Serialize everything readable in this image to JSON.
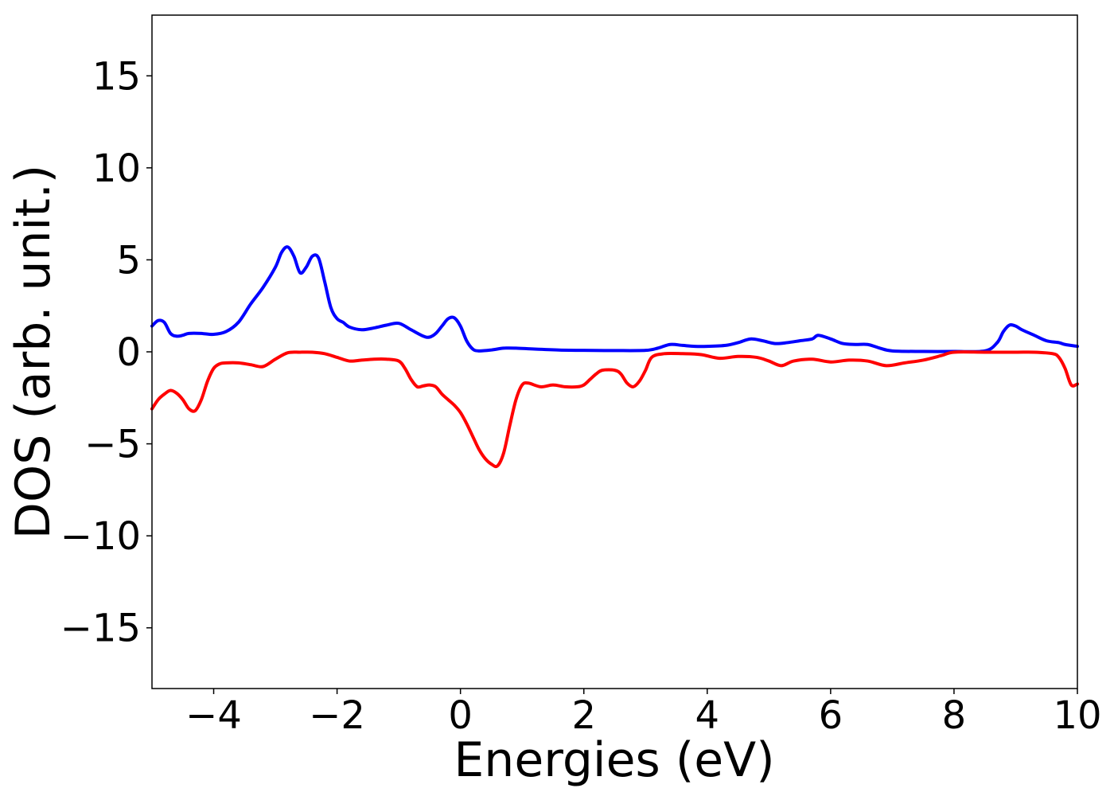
{
  "chart_data": {
    "type": "line",
    "title": "",
    "xlabel": "Energies (eV)",
    "ylabel": "DOS (arb. unit.)",
    "xlim": [
      -5,
      10
    ],
    "ylim": [
      -18.3,
      18.3
    ],
    "grid": false,
    "legend": "none",
    "x_ticks": [
      -4,
      -2,
      0,
      2,
      4,
      6,
      8,
      10
    ],
    "x_tick_labels": [
      "−4",
      "−2",
      "0",
      "2",
      "4",
      "6",
      "8",
      "10"
    ],
    "y_ticks": [
      -15,
      -10,
      -5,
      0,
      5,
      10,
      15
    ],
    "y_tick_labels": [
      "−15",
      "−10",
      "−5",
      "0",
      "5",
      "10",
      "15"
    ],
    "series": [
      {
        "color": "#0000ff",
        "x": [
          -5.0,
          -4.9,
          -4.8,
          -4.7,
          -4.6,
          -4.5,
          -4.4,
          -4.2,
          -4.0,
          -3.8,
          -3.6,
          -3.4,
          -3.2,
          -3.0,
          -2.9,
          -2.8,
          -2.7,
          -2.6,
          -2.5,
          -2.4,
          -2.3,
          -2.2,
          -2.1,
          -2.0,
          -1.9,
          -1.8,
          -1.6,
          -1.4,
          -1.2,
          -1.0,
          -0.8,
          -0.6,
          -0.5,
          -0.4,
          -0.3,
          -0.2,
          -0.1,
          0.0,
          0.1,
          0.2,
          0.3,
          0.5,
          0.7,
          0.9,
          1.2,
          1.6,
          2.0,
          2.5,
          3.0,
          3.2,
          3.4,
          3.6,
          3.8,
          4.0,
          4.3,
          4.5,
          4.7,
          4.9,
          5.1,
          5.3,
          5.5,
          5.7,
          5.8,
          6.0,
          6.2,
          6.4,
          6.6,
          6.8,
          7.0,
          7.5,
          8.0,
          8.5,
          8.7,
          8.8,
          8.9,
          9.0,
          9.1,
          9.3,
          9.5,
          9.7,
          9.8,
          10.0
        ],
        "y": [
          1.4,
          1.7,
          1.6,
          1.0,
          0.85,
          0.9,
          1.0,
          1.0,
          0.95,
          1.1,
          1.6,
          2.6,
          3.5,
          4.6,
          5.4,
          5.7,
          5.2,
          4.3,
          4.6,
          5.2,
          5.1,
          3.8,
          2.4,
          1.8,
          1.6,
          1.35,
          1.2,
          1.3,
          1.45,
          1.55,
          1.2,
          0.85,
          0.8,
          1.0,
          1.4,
          1.8,
          1.85,
          1.4,
          0.6,
          0.15,
          0.05,
          0.1,
          0.2,
          0.2,
          0.15,
          0.1,
          0.08,
          0.07,
          0.08,
          0.2,
          0.4,
          0.35,
          0.3,
          0.3,
          0.35,
          0.5,
          0.7,
          0.6,
          0.45,
          0.5,
          0.6,
          0.7,
          0.9,
          0.7,
          0.45,
          0.4,
          0.4,
          0.2,
          0.05,
          0.02,
          0.02,
          0.05,
          0.5,
          1.1,
          1.45,
          1.4,
          1.2,
          0.9,
          0.6,
          0.5,
          0.4,
          0.3
        ]
      },
      {
        "color": "#ff0000",
        "x": [
          -5.0,
          -4.9,
          -4.8,
          -4.7,
          -4.6,
          -4.5,
          -4.4,
          -4.3,
          -4.2,
          -4.1,
          -4.0,
          -3.9,
          -3.8,
          -3.6,
          -3.4,
          -3.2,
          -3.0,
          -2.8,
          -2.6,
          -2.4,
          -2.2,
          -2.0,
          -1.8,
          -1.6,
          -1.4,
          -1.2,
          -1.0,
          -0.9,
          -0.8,
          -0.7,
          -0.6,
          -0.5,
          -0.4,
          -0.3,
          -0.2,
          -0.1,
          0.0,
          0.1,
          0.2,
          0.3,
          0.4,
          0.5,
          0.6,
          0.7,
          0.8,
          0.9,
          1.0,
          1.1,
          1.3,
          1.5,
          1.7,
          1.9,
          2.0,
          2.1,
          2.2,
          2.3,
          2.5,
          2.6,
          2.7,
          2.8,
          2.9,
          3.0,
          3.1,
          3.3,
          3.6,
          3.9,
          4.2,
          4.5,
          4.8,
          5.0,
          5.2,
          5.4,
          5.7,
          6.0,
          6.3,
          6.6,
          6.9,
          7.2,
          7.5,
          7.8,
          8.0,
          8.5,
          9.0,
          9.3,
          9.6,
          9.7,
          9.8,
          9.9,
          10.0
        ],
        "y": [
          -3.1,
          -2.6,
          -2.3,
          -2.1,
          -2.25,
          -2.6,
          -3.1,
          -3.2,
          -2.6,
          -1.6,
          -0.9,
          -0.65,
          -0.6,
          -0.6,
          -0.7,
          -0.8,
          -0.4,
          -0.05,
          -0.02,
          -0.02,
          -0.1,
          -0.3,
          -0.5,
          -0.45,
          -0.4,
          -0.4,
          -0.5,
          -0.9,
          -1.5,
          -1.9,
          -1.85,
          -1.8,
          -1.9,
          -2.3,
          -2.6,
          -2.9,
          -3.3,
          -3.9,
          -4.6,
          -5.3,
          -5.8,
          -6.1,
          -6.2,
          -5.5,
          -4.0,
          -2.6,
          -1.8,
          -1.7,
          -1.9,
          -1.8,
          -1.9,
          -1.9,
          -1.8,
          -1.5,
          -1.2,
          -1.0,
          -1.0,
          -1.2,
          -1.7,
          -1.9,
          -1.6,
          -1.0,
          -0.3,
          -0.1,
          -0.1,
          -0.15,
          -0.35,
          -0.25,
          -0.3,
          -0.5,
          -0.75,
          -0.5,
          -0.4,
          -0.55,
          -0.45,
          -0.5,
          -0.75,
          -0.6,
          -0.45,
          -0.2,
          -0.02,
          -0.02,
          -0.02,
          -0.02,
          -0.1,
          -0.3,
          -0.9,
          -1.8,
          -1.75
        ]
      }
    ]
  }
}
